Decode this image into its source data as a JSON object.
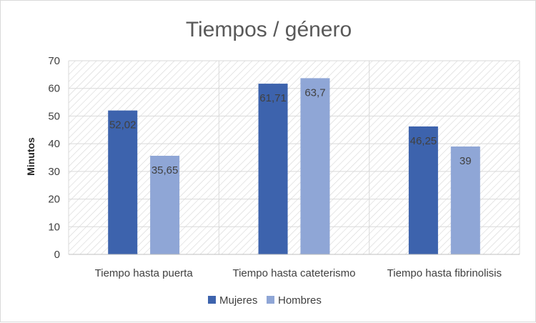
{
  "chart_data": {
    "type": "bar",
    "title": "Tiempos / género",
    "xlabel": "",
    "ylabel": "Minutos",
    "ylim": [
      0,
      70
    ],
    "yticks": [
      0,
      10,
      20,
      30,
      40,
      50,
      60,
      70
    ],
    "categories": [
      "Tiempo hasta puerta",
      "Tiempo hasta cateterismo",
      "Tiempo hasta fibrinolisis"
    ],
    "series": [
      {
        "name": "Mujeres",
        "color": "#3d63ad",
        "values": [
          52.02,
          61.71,
          46.25
        ],
        "labels": [
          "52,02",
          "61,71",
          "46,25"
        ]
      },
      {
        "name": "Hombres",
        "color": "#8fa6d6",
        "values": [
          35.65,
          63.7,
          39
        ],
        "labels": [
          "35,65",
          "63,7",
          "39"
        ]
      }
    ],
    "grid": true,
    "hatched_background": true,
    "legend_position": "bottom"
  }
}
